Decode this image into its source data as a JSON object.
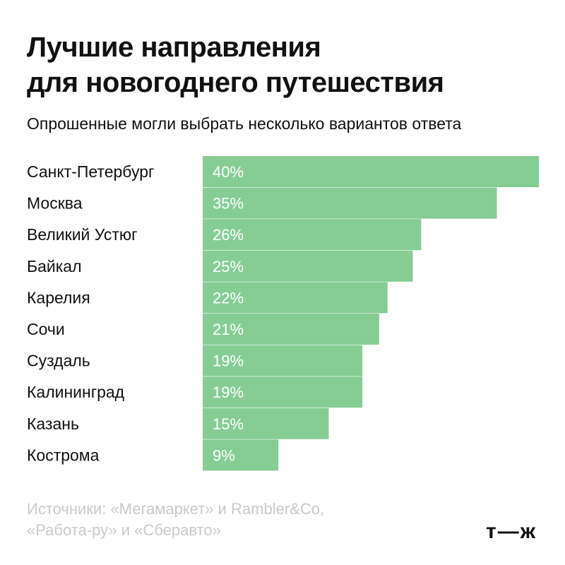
{
  "title": {
    "line1": "Лучшие направления",
    "line2": "для новогоднего путешествия"
  },
  "subtitle": "Опрошенные могли выбрать несколько вариантов ответа",
  "source": {
    "line1": "Источники: «Мегамаркет» и Rambler&Co,",
    "line2": "«Работа-ру» и «Сберавто»"
  },
  "logo": "т—ж",
  "colors": {
    "bar": "#86cd94",
    "text": "#111111",
    "muted": "#c9c9c9"
  },
  "chart_data": {
    "type": "bar",
    "orientation": "horizontal",
    "title": "Лучшие направления для новогоднего путешествия",
    "subtitle": "Опрошенные могли выбрать несколько вариантов ответа",
    "categories": [
      "Санкт-Петербург",
      "Москва",
      "Великий Устюг",
      "Байкал",
      "Карелия",
      "Сочи",
      "Суздаль",
      "Калининград",
      "Казань",
      "Кострома"
    ],
    "values": [
      40,
      35,
      26,
      25,
      22,
      21,
      19,
      19,
      15,
      9
    ],
    "value_labels": [
      "40%",
      "35%",
      "26%",
      "25%",
      "22%",
      "21%",
      "19%",
      "19%",
      "15%",
      "9%"
    ],
    "xlim": [
      0,
      40
    ],
    "grid": false,
    "legend": "none"
  }
}
